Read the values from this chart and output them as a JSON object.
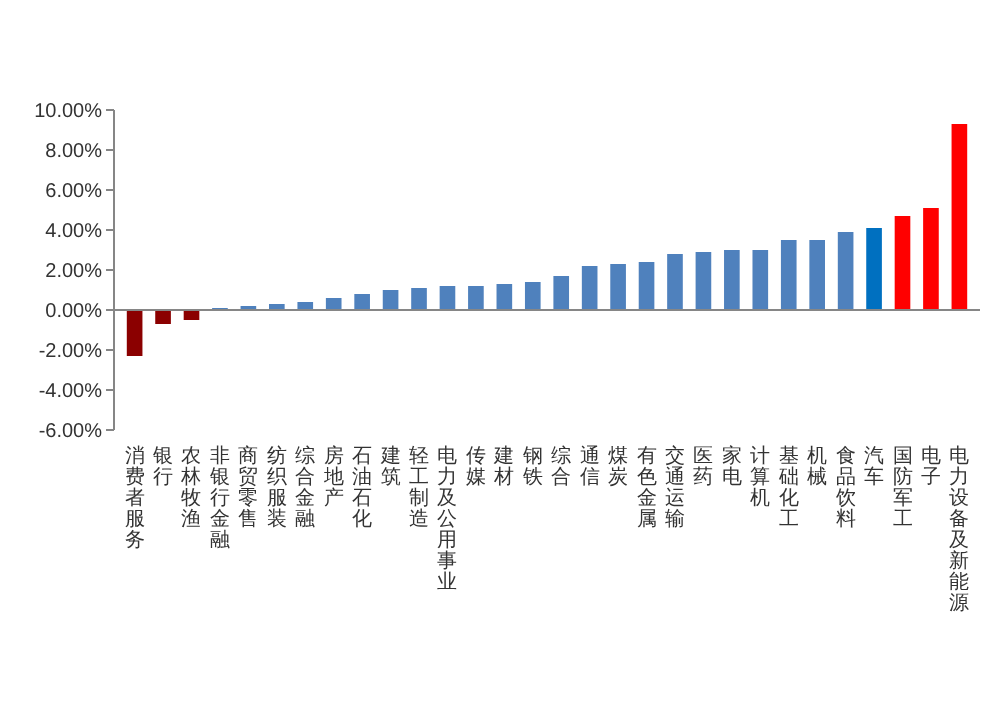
{
  "chart_data": {
    "type": "bar",
    "categories": [
      "消费者服务",
      "银行",
      "农林牧渔",
      "非银行金融",
      "商贸零售",
      "纺织服装",
      "综合金融",
      "房地产",
      "石油石化",
      "建筑",
      "轻工制造",
      "电力及公用事业",
      "传媒",
      "建材",
      "钢铁",
      "综合",
      "通信",
      "煤炭",
      "有色金属",
      "交通运输",
      "医药",
      "家电",
      "计算机",
      "基础化工",
      "机械",
      "食品饮料",
      "汽车",
      "国防军工",
      "电子",
      "电力设备及新能源"
    ],
    "values": [
      -2.3,
      -0.7,
      -0.5,
      0.1,
      0.2,
      0.3,
      0.4,
      0.6,
      0.8,
      1.0,
      1.1,
      1.2,
      1.2,
      1.3,
      1.4,
      1.7,
      2.2,
      2.3,
      2.4,
      2.8,
      2.9,
      3.0,
      3.0,
      3.5,
      3.5,
      3.9,
      4.1,
      4.7,
      5.1,
      9.3
    ],
    "colors": [
      "#8b0000",
      "#8b0000",
      "#8b0000",
      "#4f81bd",
      "#4f81bd",
      "#4f81bd",
      "#4f81bd",
      "#4f81bd",
      "#4f81bd",
      "#4f81bd",
      "#4f81bd",
      "#4f81bd",
      "#4f81bd",
      "#4f81bd",
      "#4f81bd",
      "#4f81bd",
      "#4f81bd",
      "#4f81bd",
      "#4f81bd",
      "#4f81bd",
      "#4f81bd",
      "#4f81bd",
      "#4f81bd",
      "#4f81bd",
      "#4f81bd",
      "#4f81bd",
      "#0070c0",
      "#ff0000",
      "#ff0000",
      "#ff0000"
    ],
    "ylim": [
      -6,
      10
    ],
    "yticks": [
      {
        "value": -6,
        "label": "-6.00%"
      },
      {
        "value": -4,
        "label": "-4.00%"
      },
      {
        "value": -2,
        "label": "-2.00%"
      },
      {
        "value": 0,
        "label": "0.00%"
      },
      {
        "value": 2,
        "label": "2.00%"
      },
      {
        "value": 4,
        "label": "4.00%"
      },
      {
        "value": 6,
        "label": "6.00%"
      },
      {
        "value": 8,
        "label": "8.00%"
      },
      {
        "value": 10,
        "label": "10.00%"
      }
    ]
  }
}
